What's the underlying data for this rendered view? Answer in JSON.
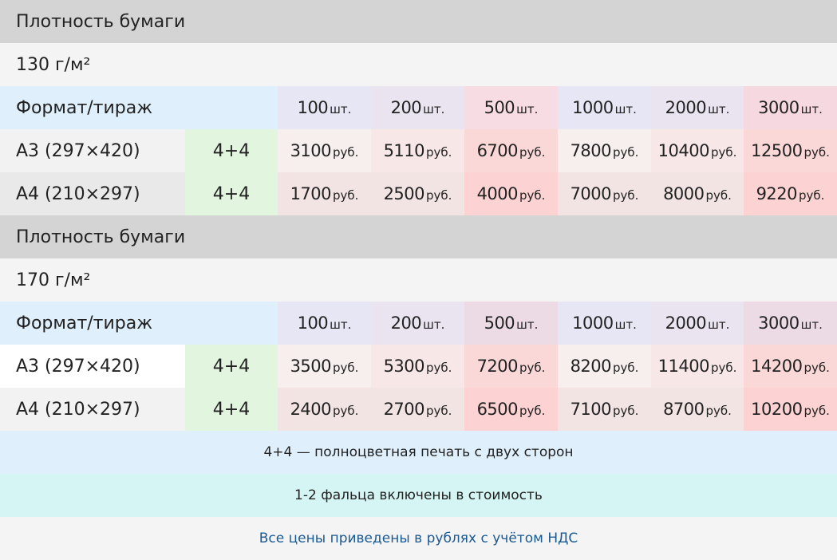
{
  "sections": [
    {
      "title": "Плотность бумаги",
      "density": "130 г/м²",
      "header_label": "Формат/тираж",
      "quantities": [
        {
          "num": "100",
          "unit": "шт."
        },
        {
          "num": "200",
          "unit": "шт."
        },
        {
          "num": "500",
          "unit": "шт."
        },
        {
          "num": "1000",
          "unit": "шт."
        },
        {
          "num": "2000",
          "unit": "шт."
        },
        {
          "num": "3000",
          "unit": "шт."
        }
      ],
      "rows": [
        {
          "format": "А3 (297×420)",
          "color": "4+4",
          "prices": [
            {
              "num": "3100",
              "unit": "руб."
            },
            {
              "num": "5110",
              "unit": "руб."
            },
            {
              "num": "6700",
              "unit": "руб."
            },
            {
              "num": "7800",
              "unit": "руб."
            },
            {
              "num": "10400",
              "unit": "руб."
            },
            {
              "num": "12500",
              "unit": "руб."
            }
          ]
        },
        {
          "format": "А4 (210×297)",
          "color": "4+4",
          "prices": [
            {
              "num": "1700",
              "unit": "руб."
            },
            {
              "num": "2500",
              "unit": "руб."
            },
            {
              "num": "4000",
              "unit": "руб."
            },
            {
              "num": "7000",
              "unit": "руб."
            },
            {
              "num": "8000",
              "unit": "руб."
            },
            {
              "num": "9220",
              "unit": "руб."
            }
          ]
        }
      ]
    },
    {
      "title": "Плотность бумаги",
      "density": "170 г/м²",
      "header_label": "Формат/тираж",
      "quantities": [
        {
          "num": "100",
          "unit": "шт."
        },
        {
          "num": "200",
          "unit": "шт."
        },
        {
          "num": "500",
          "unit": "шт."
        },
        {
          "num": "1000",
          "unit": "шт."
        },
        {
          "num": "2000",
          "unit": "шт."
        },
        {
          "num": "3000",
          "unit": "шт."
        }
      ],
      "rows": [
        {
          "format": "А3 (297×420)",
          "color": "4+4",
          "prices": [
            {
              "num": "3500",
              "unit": "руб."
            },
            {
              "num": "5300",
              "unit": "руб."
            },
            {
              "num": "7200",
              "unit": "руб."
            },
            {
              "num": "8200",
              "unit": "руб."
            },
            {
              "num": "11400",
              "unit": "руб."
            },
            {
              "num": "14200",
              "unit": "руб."
            }
          ]
        },
        {
          "format": "А4 (210×297)",
          "color": "4+4",
          "prices": [
            {
              "num": "2400",
              "unit": "руб."
            },
            {
              "num": "2700",
              "unit": "руб."
            },
            {
              "num": "6500",
              "unit": "руб."
            },
            {
              "num": "7100",
              "unit": "руб."
            },
            {
              "num": "8700",
              "unit": "руб."
            },
            {
              "num": "10200",
              "unit": "руб."
            }
          ]
        }
      ]
    }
  ],
  "notes": {
    "color_note": "4+4 — полноцветная печать с двух сторон",
    "fold_note": "1-2 фальца включены в стоимость",
    "vat_note": "Все цены приведены в рублях с учётом НДС"
  },
  "colors": {
    "quantity_header_bg": [
      "#e6e6f4",
      "#e9e4f0",
      "#f7dce4",
      "#e6e6f4",
      "#e9e4f0",
      "#f5d8e0"
    ],
    "quantity_header_bg_2": [
      "#e6e6f4",
      "#e9e4f0",
      "#ecdbe5",
      "#e6e6f4",
      "#e9e4f0",
      "#ecdbe5"
    ],
    "price_bg": [
      "#f7eeee",
      "#f8e7e7",
      "#fbd8d8",
      "#f7eeee",
      "#f8e7e7",
      "#fbd8d8"
    ],
    "price_bg_alt": [
      "#f3e4e4",
      "#f3e4e4",
      "#fcd2d2",
      "#f3e4e4",
      "#f3e4e4",
      "#fcd2d2"
    ],
    "link_text": "#1a5a93"
  }
}
